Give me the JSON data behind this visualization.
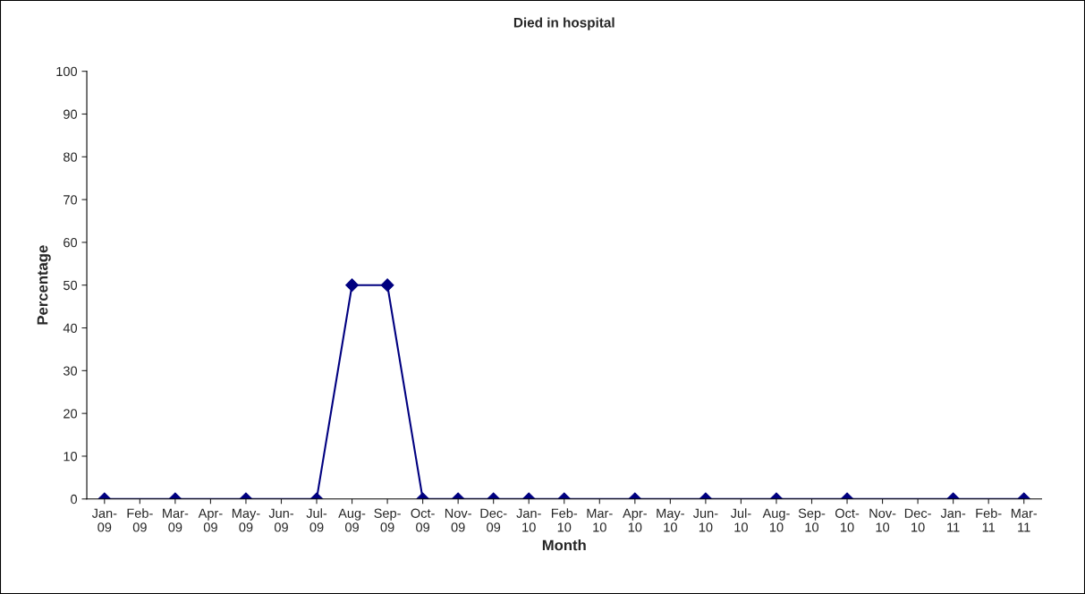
{
  "chart_data": {
    "type": "line",
    "title": "Died in hospital",
    "xlabel": "Month",
    "ylabel": "Percentage",
    "categories": [
      "Jan-09",
      "Feb-09",
      "Mar-09",
      "Apr-09",
      "May-09",
      "Jun-09",
      "Jul-09",
      "Aug-09",
      "Sep-09",
      "Oct-09",
      "Nov-09",
      "Dec-09",
      "Jan-10",
      "Feb-10",
      "Mar-10",
      "Apr-10",
      "May-10",
      "Jun-10",
      "Jul-10",
      "Aug-10",
      "Sep-10",
      "Oct-10",
      "Nov-10",
      "Dec-10",
      "Jan-11",
      "Feb-11",
      "Mar-11"
    ],
    "series": [
      {
        "color": "#000080",
        "values": [
          0,
          null,
          0,
          null,
          0,
          null,
          0,
          50,
          50,
          0,
          0,
          0,
          0,
          0,
          null,
          0,
          null,
          0,
          null,
          0,
          null,
          0,
          null,
          null,
          0,
          null,
          0
        ]
      }
    ],
    "ylim": [
      0,
      100
    ],
    "yticks": [
      0,
      10,
      20,
      30,
      40,
      50,
      60,
      70,
      80,
      90,
      100
    ],
    "grid": false,
    "legend": false,
    "marker": "diamond",
    "line_style": "solid"
  }
}
